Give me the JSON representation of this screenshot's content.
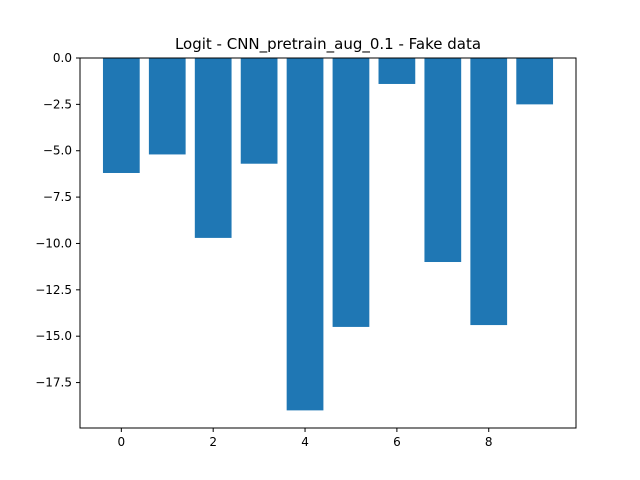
{
  "chart_data": {
    "type": "bar",
    "title": "Logit - CNN_pretrain_aug_0.1 - Fake data",
    "xlabel": "",
    "ylabel": "",
    "categories": [
      0,
      1,
      2,
      3,
      4,
      5,
      6,
      7,
      8,
      9
    ],
    "values": [
      -6.2,
      -5.2,
      -9.7,
      -5.7,
      -19.0,
      -14.5,
      -1.4,
      -11.0,
      -14.4,
      -2.5
    ],
    "xlim": [
      -0.9,
      9.9
    ],
    "ylim": [
      -19.95,
      0.0
    ],
    "xticks": [
      0,
      2,
      4,
      6,
      8
    ],
    "xtick_labels": [
      "0",
      "2",
      "4",
      "6",
      "8"
    ],
    "yticks": [
      0.0,
      -2.5,
      -5.0,
      -7.5,
      -10.0,
      -12.5,
      -15.0,
      -17.5
    ],
    "ytick_labels": [
      "0.0",
      "−2.5",
      "−5.0",
      "−7.5",
      "−10.0",
      "−12.5",
      "−15.0",
      "−17.5"
    ],
    "bar_color": "#1f77b4",
    "grid": false,
    "legend": "none"
  }
}
